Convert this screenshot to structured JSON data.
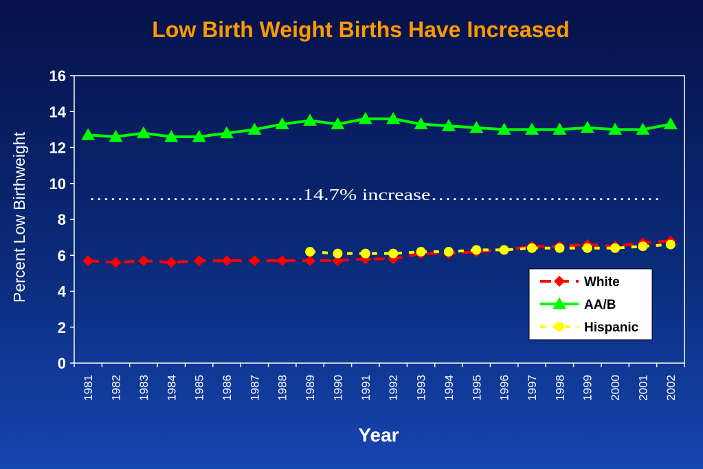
{
  "chart_data": {
    "type": "line",
    "title": "Low Birth Weight Births Have Increased",
    "xlabel": "Year",
    "ylabel": "Percent Low Birthweight",
    "ylim": [
      0,
      16
    ],
    "yticks": [
      "0",
      "2",
      "4",
      "6",
      "8",
      "10",
      "12",
      "14",
      "16"
    ],
    "categories": [
      "1981",
      "1982",
      "1983",
      "1984",
      "1985",
      "1986",
      "1987",
      "1988",
      "1989",
      "1990",
      "1991",
      "1992",
      "1993",
      "1994",
      "1995",
      "1996",
      "1997",
      "1998",
      "1999",
      "2000",
      "2001",
      "2002"
    ],
    "grid": false,
    "legend_position": "bottom-right",
    "annotation": "………………………….14.7% increase……………………………",
    "series": [
      {
        "name": "White",
        "color": "#ff0000",
        "marker": "diamond",
        "dash": "long-dash",
        "values": [
          5.7,
          5.6,
          5.7,
          5.6,
          5.7,
          5.7,
          5.7,
          5.7,
          5.7,
          5.7,
          5.8,
          5.8,
          6.1,
          6.1,
          6.2,
          6.3,
          6.5,
          6.5,
          6.6,
          6.5,
          6.7,
          6.8
        ]
      },
      {
        "name": "AA/B",
        "color": "#00ff00",
        "marker": "triangle",
        "dash": "solid",
        "values": [
          12.7,
          12.6,
          12.8,
          12.6,
          12.6,
          12.8,
          13.0,
          13.3,
          13.5,
          13.3,
          13.6,
          13.6,
          13.3,
          13.2,
          13.1,
          13.0,
          13.0,
          13.0,
          13.1,
          13.0,
          13.0,
          13.3
        ]
      },
      {
        "name": "Hispanic",
        "color": "#ffff00",
        "marker": "circle",
        "dash": "short-dash",
        "values": [
          null,
          null,
          null,
          null,
          null,
          null,
          null,
          null,
          6.2,
          6.1,
          6.1,
          6.1,
          6.2,
          6.2,
          6.3,
          6.3,
          6.4,
          6.4,
          6.4,
          6.4,
          6.5,
          6.6
        ]
      }
    ]
  }
}
